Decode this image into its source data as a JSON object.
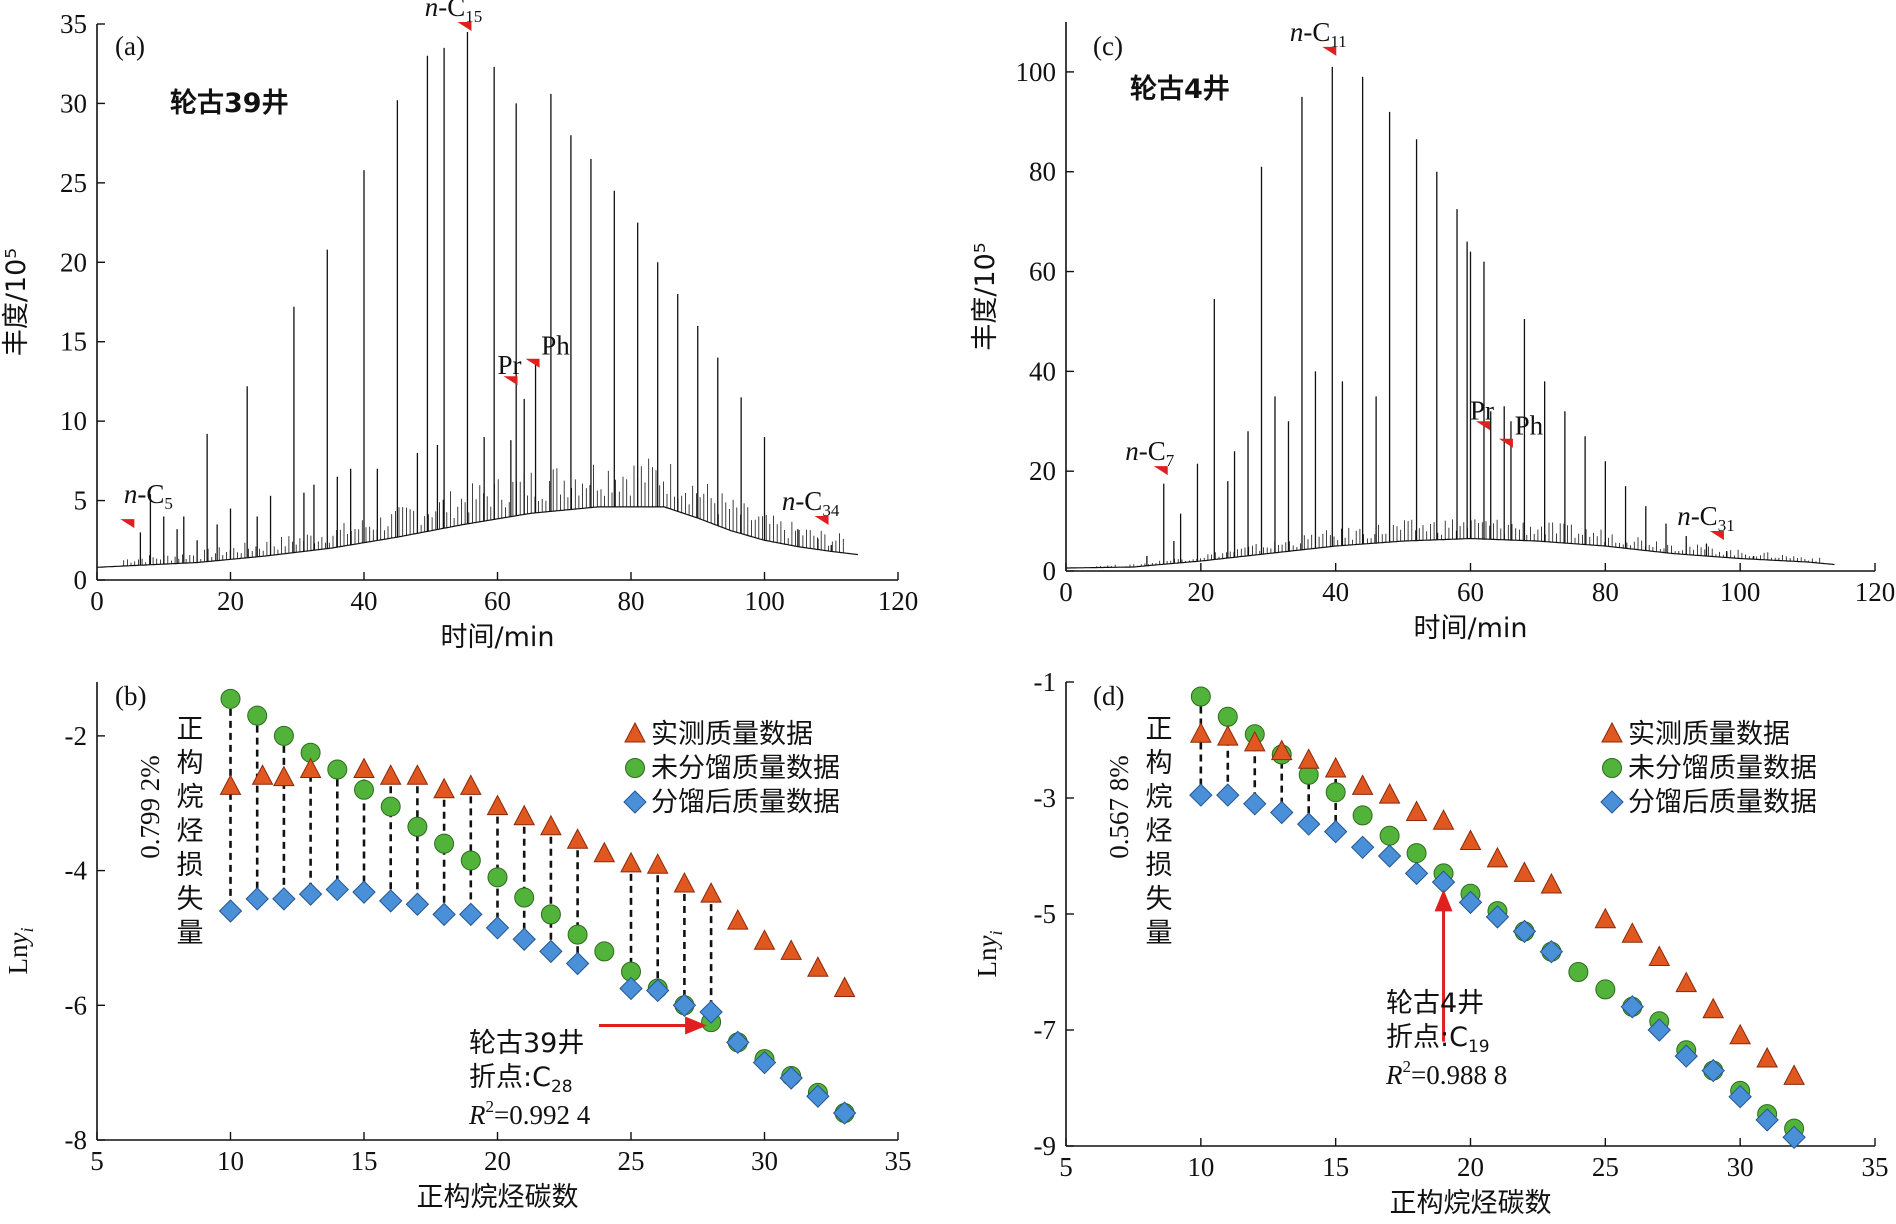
{
  "chart_data": [
    {
      "panel": "(a)",
      "type": "line",
      "well": "轮古39井",
      "xlabel": "时间/min",
      "ylabel": "丰度/10⁵",
      "xlim": [
        0,
        120
      ],
      "ylim": [
        0,
        35
      ],
      "xticks": [
        0,
        20,
        40,
        60,
        80,
        100,
        120
      ],
      "yticks": [
        0,
        5,
        10,
        15,
        20,
        25,
        30,
        35
      ],
      "baseline": [
        [
          0,
          0.8
        ],
        [
          5,
          0.9
        ],
        [
          15,
          1.1
        ],
        [
          25,
          1.5
        ],
        [
          35,
          2.0
        ],
        [
          45,
          2.7
        ],
        [
          55,
          3.5
        ],
        [
          65,
          4.2
        ],
        [
          75,
          4.6
        ],
        [
          85,
          4.6
        ],
        [
          90,
          3.9
        ],
        [
          95,
          3.1
        ],
        [
          100,
          2.5
        ],
        [
          105,
          2.1
        ],
        [
          110,
          1.8
        ],
        [
          114,
          1.6
        ]
      ],
      "peaks": [
        [
          6.5,
          3.0
        ],
        [
          8,
          5.4
        ],
        [
          10,
          4.0
        ],
        [
          12,
          3.2
        ],
        [
          13,
          4.0
        ],
        [
          15,
          2.5
        ],
        [
          16.5,
          9.2
        ],
        [
          18,
          3.5
        ],
        [
          20,
          4.5
        ],
        [
          22.5,
          12.2
        ],
        [
          24,
          4.0
        ],
        [
          26,
          5.3
        ],
        [
          29.5,
          17.2
        ],
        [
          31,
          5.5
        ],
        [
          32.5,
          6.0
        ],
        [
          34.5,
          20.8
        ],
        [
          36,
          6.5
        ],
        [
          38,
          7.0
        ],
        [
          40,
          25.8
        ],
        [
          42,
          7.0
        ],
        [
          45,
          30.2
        ],
        [
          48,
          8.0
        ],
        [
          49.5,
          33.0
        ],
        [
          51,
          8.5
        ],
        [
          52,
          33.5
        ],
        [
          55.5,
          34.5
        ],
        [
          58,
          9.0
        ],
        [
          59.5,
          32.3
        ],
        [
          62,
          8.8
        ],
        [
          62.8,
          30.0
        ],
        [
          64,
          11.4
        ],
        [
          65.7,
          13.8
        ],
        [
          68,
          30.6
        ],
        [
          71,
          28.0
        ],
        [
          74,
          26.5
        ],
        [
          77.5,
          24.5
        ],
        [
          81,
          22.5
        ],
        [
          84,
          20.0
        ],
        [
          87,
          18.0
        ],
        [
          90,
          16.0
        ],
        [
          93,
          14.0
        ],
        [
          96.5,
          11.5
        ],
        [
          100,
          9.0
        ],
        [
          105,
          3.2
        ],
        [
          108,
          2.6
        ],
        [
          110,
          2.2
        ]
      ],
      "annotations": [
        {
          "label": "n-C",
          "sub": "5",
          "x": 5,
          "y": 3.2
        },
        {
          "label": "n-C",
          "sub": "15",
          "x": 55.5,
          "y": 34.5
        },
        {
          "label": "Pr",
          "sub": "",
          "x": 62.4,
          "y": 12.2
        },
        {
          "label": "Ph",
          "sub": "",
          "x": 65.7,
          "y": 13.3
        },
        {
          "label": "n-C",
          "sub": "34",
          "x": 109,
          "y": 3.4
        }
      ]
    },
    {
      "panel": "(c)",
      "type": "line",
      "well": "轮古4井",
      "xlabel": "时间/min",
      "ylabel": "丰度/10⁵",
      "xlim": [
        0,
        120
      ],
      "ylim": [
        0,
        110
      ],
      "xticks": [
        0,
        20,
        40,
        60,
        80,
        100,
        120
      ],
      "yticks": [
        0,
        20,
        40,
        60,
        80,
        100
      ],
      "baseline": [
        [
          0,
          0.6
        ],
        [
          10,
          0.8
        ],
        [
          14,
          1.3
        ],
        [
          20,
          2.0
        ],
        [
          30,
          3.5
        ],
        [
          40,
          5.0
        ],
        [
          50,
          6.0
        ],
        [
          60,
          6.5
        ],
        [
          70,
          6.0
        ],
        [
          80,
          5.0
        ],
        [
          90,
          3.5
        ],
        [
          100,
          2.5
        ],
        [
          110,
          1.8
        ],
        [
          114,
          1.3
        ]
      ],
      "peaks": [
        [
          12,
          3.0
        ],
        [
          14.5,
          17.5
        ],
        [
          16,
          6.0
        ],
        [
          17,
          11.5
        ],
        [
          19.5,
          21.5
        ],
        [
          22,
          54.5
        ],
        [
          24,
          18.0
        ],
        [
          25,
          24.0
        ],
        [
          27,
          28.0
        ],
        [
          29,
          81.0
        ],
        [
          31,
          35.0
        ],
        [
          33,
          30.0
        ],
        [
          35,
          95.0
        ],
        [
          37,
          40.0
        ],
        [
          39.5,
          101.0
        ],
        [
          41,
          38.0
        ],
        [
          44,
          99.0
        ],
        [
          46,
          35.0
        ],
        [
          48,
          92.0
        ],
        [
          52,
          86.5
        ],
        [
          55,
          80.0
        ],
        [
          58,
          72.5
        ],
        [
          59.5,
          66.0
        ],
        [
          60,
          64.0
        ],
        [
          62,
          62.0
        ],
        [
          63,
          32.0
        ],
        [
          65,
          33.0
        ],
        [
          66,
          30.0
        ],
        [
          68,
          50.5
        ],
        [
          71,
          38.0
        ],
        [
          74,
          32.0
        ],
        [
          77,
          27.0
        ],
        [
          80,
          22.0
        ],
        [
          83,
          17.0
        ],
        [
          86,
          13.0
        ],
        [
          89,
          9.5
        ],
        [
          92,
          7.0
        ],
        [
          95,
          5.5
        ],
        [
          98,
          4.0
        ],
        [
          102,
          3.0
        ]
      ],
      "annotations": [
        {
          "label": "n-C",
          "sub": "7",
          "x": 14.5,
          "y": 19.0
        },
        {
          "label": "n-C",
          "sub": "11",
          "x": 39.5,
          "y": 103.0
        },
        {
          "label": "Pr",
          "sub": "",
          "x": 62.3,
          "y": 28.0
        },
        {
          "label": "Ph",
          "sub": "",
          "x": 65.7,
          "y": 24.5
        },
        {
          "label": "n-C",
          "sub": "31",
          "x": 97,
          "y": 6.0
        }
      ]
    },
    {
      "panel": "(b)",
      "type": "scatter",
      "xlabel": "正构烷烃碳数",
      "ylabel": "Lny",
      "ylabel_sub": "i",
      "xlim": [
        5,
        35
      ],
      "ylim": [
        -8,
        -1.2
      ],
      "xticks": [
        5,
        10,
        15,
        20,
        25,
        30,
        35
      ],
      "yticks": [
        -8,
        -6,
        -4,
        -2
      ],
      "legend": [
        "实测质量数据",
        "未分馏质量数据",
        "分馏后质量数据"
      ],
      "series": [
        {
          "name": "实测质量数据",
          "marker": "triangle",
          "color": "#e0581f",
          "points": [
            [
              10,
              -2.75
            ],
            [
              11.2,
              -2.6
            ],
            [
              12,
              -2.62
            ],
            [
              13,
              -2.5
            ],
            [
              15,
              -2.5
            ],
            [
              16,
              -2.6
            ],
            [
              17,
              -2.6
            ],
            [
              18,
              -2.8
            ],
            [
              19,
              -2.75
            ],
            [
              20,
              -3.05
            ],
            [
              21,
              -3.2
            ],
            [
              22,
              -3.35
            ],
            [
              23,
              -3.55
            ],
            [
              24,
              -3.75
            ],
            [
              25,
              -3.9
            ],
            [
              26,
              -3.92
            ],
            [
              27,
              -4.2
            ],
            [
              28,
              -4.35
            ],
            [
              29,
              -4.75
            ],
            [
              30,
              -5.05
            ],
            [
              31,
              -5.2
            ],
            [
              32,
              -5.45
            ],
            [
              33,
              -5.75
            ]
          ]
        },
        {
          "name": "未分馏质量数据",
          "marker": "circle",
          "color": "#52b33a",
          "points": [
            [
              10,
              -1.45
            ],
            [
              11,
              -1.7
            ],
            [
              12,
              -2.0
            ],
            [
              13,
              -2.25
            ],
            [
              14,
              -2.5
            ],
            [
              15,
              -2.8
            ],
            [
              16,
              -3.05
            ],
            [
              17,
              -3.35
            ],
            [
              18,
              -3.6
            ],
            [
              19,
              -3.85
            ],
            [
              20,
              -4.1
            ],
            [
              21,
              -4.4
            ],
            [
              22,
              -4.65
            ],
            [
              23,
              -4.95
            ],
            [
              24,
              -5.2
            ],
            [
              25,
              -5.5
            ],
            [
              26,
              -5.75
            ],
            [
              27,
              -6.0
            ],
            [
              28,
              -6.25
            ],
            [
              29,
              -6.55
            ],
            [
              30,
              -6.8
            ],
            [
              31,
              -7.05
            ],
            [
              32,
              -7.3
            ],
            [
              33,
              -7.6
            ]
          ]
        },
        {
          "name": "分馏后质量数据",
          "marker": "diamond",
          "color": "#4a90d9",
          "points": [
            [
              10,
              -4.6
            ],
            [
              11,
              -4.42
            ],
            [
              12,
              -4.42
            ],
            [
              13,
              -4.35
            ],
            [
              14,
              -4.28
            ],
            [
              15,
              -4.32
            ],
            [
              16,
              -4.45
            ],
            [
              17,
              -4.5
            ],
            [
              18,
              -4.65
            ],
            [
              19,
              -4.65
            ],
            [
              20,
              -4.85
            ],
            [
              21,
              -5.02
            ],
            [
              22,
              -5.2
            ],
            [
              23,
              -5.38
            ],
            [
              25,
              -5.75
            ],
            [
              26,
              -5.78
            ],
            [
              27,
              -6.0
            ],
            [
              28,
              -6.1
            ],
            [
              29,
              -6.55
            ],
            [
              30,
              -6.85
            ],
            [
              31,
              -7.08
            ],
            [
              32,
              -7.35
            ],
            [
              33,
              -7.6
            ]
          ]
        }
      ],
      "dashes": [
        10,
        11,
        12,
        13,
        14,
        15,
        16,
        17,
        18,
        19,
        20,
        21,
        22,
        23,
        25,
        26,
        27,
        28
      ],
      "loss_label": "正构烷烃损失量",
      "loss_value": "0.799 2%",
      "breakpoint_text": "轮古39井",
      "breakpoint_label": "折点:C",
      "breakpoint_sub": "28",
      "r2_value": "=0.992 4",
      "breakpoint_x": 28
    },
    {
      "panel": "(d)",
      "type": "scatter",
      "xlabel": "正构烷烃碳数",
      "ylabel": "Lny",
      "ylabel_sub": "i",
      "xlim": [
        5,
        35
      ],
      "ylim": [
        -9,
        -1
      ],
      "xticks": [
        5,
        10,
        15,
        20,
        25,
        30,
        35
      ],
      "yticks": [
        -9,
        -7,
        -5,
        -3,
        -1
      ],
      "legend": [
        "实测质量数据",
        "未分馏质量数据",
        "分馏后质量数据"
      ],
      "series": [
        {
          "name": "实测质量数据",
          "marker": "triangle",
          "color": "#e0581f",
          "points": [
            [
              10,
              -1.9
            ],
            [
              11,
              -1.95
            ],
            [
              12,
              -2.05
            ],
            [
              13,
              -2.2
            ],
            [
              14,
              -2.35
            ],
            [
              15,
              -2.5
            ],
            [
              16,
              -2.8
            ],
            [
              17,
              -2.95
            ],
            [
              18,
              -3.25
            ],
            [
              19,
              -3.4
            ],
            [
              20,
              -3.75
            ],
            [
              21,
              -4.05
            ],
            [
              22,
              -4.3
            ],
            [
              23,
              -4.5
            ],
            [
              25,
              -5.1
            ],
            [
              26,
              -5.35
            ],
            [
              27,
              -5.75
            ],
            [
              28,
              -6.2
            ],
            [
              29,
              -6.65
            ],
            [
              30,
              -7.1
            ],
            [
              31,
              -7.5
            ],
            [
              32,
              -7.8
            ]
          ]
        },
        {
          "name": "未分馏质量数据",
          "marker": "circle",
          "color": "#52b33a",
          "points": [
            [
              10,
              -1.25
            ],
            [
              11,
              -1.6
            ],
            [
              12,
              -1.9
            ],
            [
              13,
              -2.25
            ],
            [
              14,
              -2.6
            ],
            [
              15,
              -2.9
            ],
            [
              16,
              -3.3
            ],
            [
              17,
              -3.65
            ],
            [
              18,
              -3.95
            ],
            [
              19,
              -4.3
            ],
            [
              20,
              -4.65
            ],
            [
              21,
              -4.95
            ],
            [
              22,
              -5.3
            ],
            [
              23,
              -5.65
            ],
            [
              24,
              -6.0
            ],
            [
              25,
              -6.3
            ],
            [
              26,
              -6.6
            ],
            [
              27,
              -6.85
            ],
            [
              28,
              -7.35
            ],
            [
              29,
              -7.7
            ],
            [
              30,
              -8.05
            ],
            [
              31,
              -8.45
            ],
            [
              32,
              -8.7
            ]
          ]
        },
        {
          "name": "分馏后质量数据",
          "marker": "diamond",
          "color": "#4a90d9",
          "points": [
            [
              10,
              -2.95
            ],
            [
              11,
              -2.95
            ],
            [
              12,
              -3.1
            ],
            [
              13,
              -3.25
            ],
            [
              14,
              -3.45
            ],
            [
              15,
              -3.58
            ],
            [
              16,
              -3.85
            ],
            [
              17,
              -4.0
            ],
            [
              18,
              -4.3
            ],
            [
              19,
              -4.45
            ],
            [
              20,
              -4.8
            ],
            [
              21,
              -5.05
            ],
            [
              22,
              -5.3
            ],
            [
              23,
              -5.65
            ],
            [
              26,
              -6.6
            ],
            [
              27,
              -7.0
            ],
            [
              28,
              -7.45
            ],
            [
              29,
              -7.7
            ],
            [
              30,
              -8.15
            ],
            [
              31,
              -8.55
            ],
            [
              32,
              -8.85
            ]
          ]
        }
      ],
      "dashes": [
        10,
        11,
        12,
        13,
        14,
        15
      ],
      "loss_label": "正构烷烃损失量",
      "loss_value": "0.567 8%",
      "breakpoint_text": "轮古4井",
      "breakpoint_label": "折点:C",
      "breakpoint_sub": "19",
      "r2_value": "=0.988 8",
      "breakpoint_x": 19
    }
  ]
}
